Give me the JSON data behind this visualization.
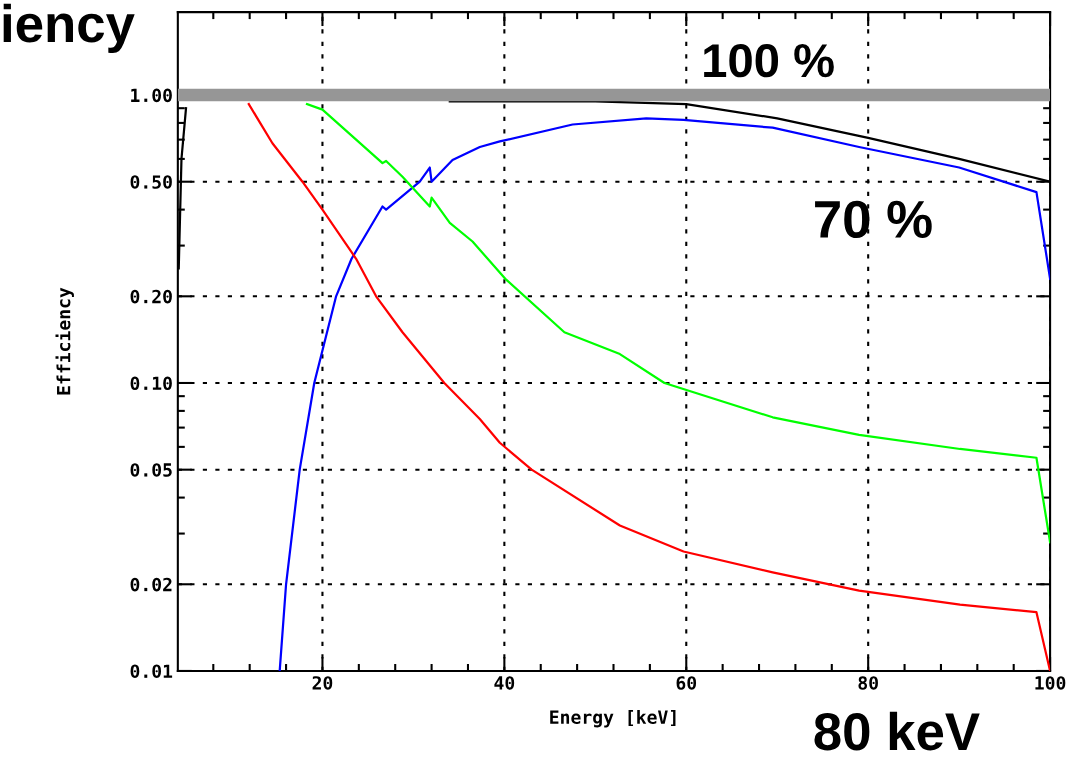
{
  "chart_data": {
    "type": "line",
    "xlabel": "Energy [keV]",
    "ylabel": "Efficiency",
    "log": "y",
    "grid": true,
    "line_style": "solid",
    "xlim": [
      4.1,
      100
    ],
    "xticks": [
      20,
      40,
      60,
      80,
      100
    ],
    "ylim": [
      0.01,
      1.94
    ],
    "yticks": [
      {
        "value": 0.01,
        "label": "0.01"
      },
      {
        "value": 0.02,
        "label": "0.02"
      },
      {
        "value": 0.05,
        "label": "0.05"
      },
      {
        "value": 0.1,
        "label": "0.10"
      },
      {
        "value": 0.2,
        "label": "0.20"
      },
      {
        "value": 0.5,
        "label": "0.50"
      },
      {
        "value": 1,
        "label": "1.00"
      }
    ],
    "series": [
      {
        "color": "#000000",
        "x": [
          4.2,
          4.5,
          5,
          5.5,
          33,
          34,
          40,
          50,
          60,
          70,
          80,
          90,
          100
        ],
        "values": [
          0.25,
          0.6,
          0.9,
          null,
          null,
          0.95,
          0.95,
          0.95,
          0.93,
          0.83,
          0.71,
          0.6,
          0.5
        ]
      },
      {
        "color": "#0000ff",
        "x": [
          15.3,
          16.0,
          17.5,
          19.1,
          21.5,
          23.2,
          26.6,
          27.0,
          30.7,
          31.8,
          32.0,
          34.3,
          37.3,
          39.5,
          47.5,
          55.6,
          59.7,
          69.5,
          79,
          90,
          98.5,
          100
        ],
        "values": [
          0.01,
          0.02,
          0.05,
          0.1,
          0.2,
          0.27,
          0.41,
          0.4,
          0.5,
          0.56,
          0.5,
          0.595,
          0.66,
          0.69,
          0.79,
          0.83,
          0.82,
          0.77,
          0.66,
          0.56,
          0.46,
          0.23
        ]
      },
      {
        "color": "#00ff00",
        "x": [
          18.3,
          20,
          26.6,
          27.0,
          28.8,
          31.8,
          32.0,
          34.0,
          36.5,
          40.1,
          46.6,
          52.7,
          57.6,
          69.5,
          79,
          90.1,
          98.5,
          100
        ],
        "values": [
          0.93,
          0.89,
          0.58,
          0.59,
          0.52,
          0.41,
          0.44,
          0.36,
          0.31,
          0.23,
          0.15,
          0.126,
          0.1,
          0.076,
          0.066,
          0.059,
          0.055,
          0.028
        ]
      },
      {
        "color": "#ff0000",
        "x": [
          11.9,
          14.5,
          17.8,
          20,
          23.7,
          25.9,
          28.8,
          33.4,
          37.3,
          39.5,
          43,
          52.7,
          59.7,
          69.5,
          79,
          90.1,
          98.5,
          100
        ],
        "values": [
          0.93,
          0.68,
          0.5,
          0.4,
          0.27,
          0.2,
          0.15,
          0.1,
          0.075,
          0.062,
          0.05,
          0.032,
          0.026,
          0.022,
          0.019,
          0.017,
          0.016,
          0.01
        ]
      }
    ],
    "ref_lines": [
      {
        "axis": "y",
        "value": 1,
        "label": "100 %",
        "color": "#969696"
      }
    ],
    "annotations": [
      "iency",
      "70 %",
      "80 keV"
    ]
  }
}
